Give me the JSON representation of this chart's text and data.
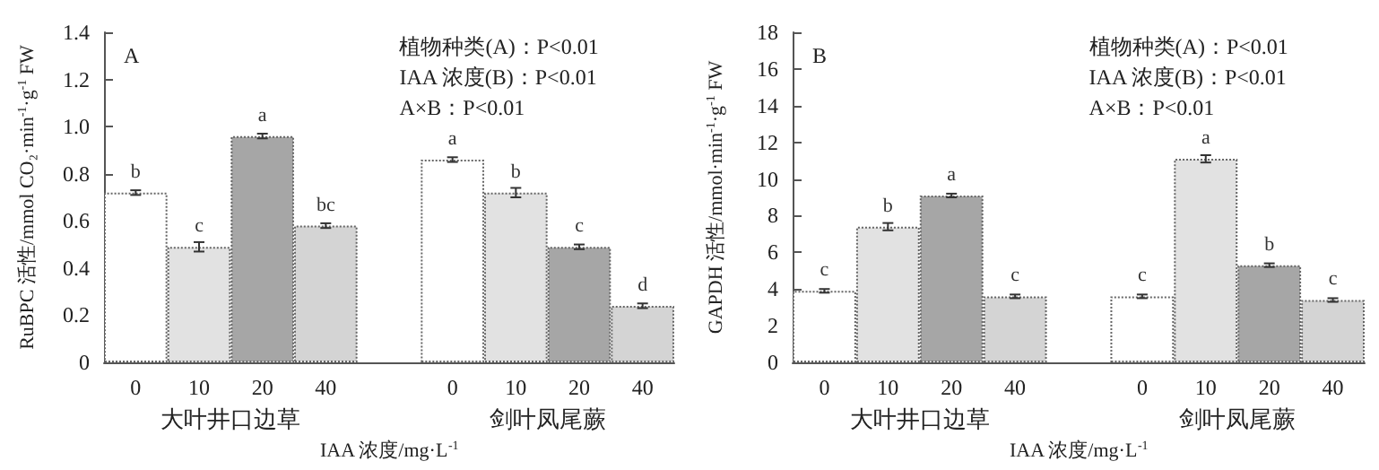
{
  "chart_data": [
    {
      "type": "bar",
      "title": "A",
      "ylabel": "RuBPC 活性/mmol CO₂·min$^{-1}$·g$^{-1}$ FW",
      "xlabel": "IAA 浓度/mg·L$^{-1}$",
      "annotations": [
        "植物种类(A)：P<0.01",
        "IAA 浓度(B)：P<0.01",
        "A×B：P<0.01",
        "大叶井口边草",
        "剑叶凤尾蕨"
      ],
      "categories": [
        "0",
        "10",
        "20",
        "40",
        null,
        "0",
        "10",
        "20",
        "40"
      ],
      "values": [
        0.72,
        0.49,
        0.96,
        0.58,
        null,
        0.86,
        0.72,
        0.49,
        0.24
      ],
      "errors": [
        0.01,
        0.02,
        0.01,
        0.01,
        null,
        0.01,
        0.02,
        0.01,
        0.01
      ],
      "colors": [
        "#ffffff",
        "#e2e2e2",
        "#a6a6a6",
        "#d4d4d4",
        "#ffffff",
        "#ffffff",
        "#e2e2e2",
        "#a6a6a6",
        "#d4d4d4"
      ],
      "value_labels": [
        "b",
        "c",
        "a",
        "bc",
        null,
        "a",
        "b",
        "c",
        "d"
      ],
      "ylim": [
        0,
        1.4
      ],
      "yticks": [
        0,
        0.2,
        0.4,
        0.6,
        0.8,
        {
          "value": 1,
          "label": "1.0"
        },
        1.2,
        1.4
      ],
      "grid": false
    },
    {
      "type": "bar",
      "title": "B",
      "ylabel": "GAPDH 活性/mmol·min$^{-1}$·g$^{-1}$ FW",
      "xlabel": "IAA 浓度/mg·L$^{-1}$",
      "annotations": [
        "植物种类(A)：P<0.01",
        "IAA 浓度(B)：P<0.01",
        "A×B：P<0.01",
        "大叶井口边草",
        "剑叶凤尾蕨"
      ],
      "categories": [
        "0",
        "10",
        "20",
        "40",
        null,
        "0",
        "10",
        "20",
        "40"
      ],
      "values": [
        3.9,
        7.4,
        9.1,
        3.6,
        null,
        3.6,
        11.1,
        5.3,
        3.4
      ],
      "errors": [
        0.1,
        0.2,
        0.1,
        0.1,
        null,
        0.1,
        0.2,
        0.1,
        0.1
      ],
      "colors": [
        "#ffffff",
        "#e2e2e2",
        "#a6a6a6",
        "#d4d4d4",
        "#ffffff",
        "#ffffff",
        "#e2e2e2",
        "#a6a6a6",
        "#d4d4d4"
      ],
      "value_labels": [
        "c",
        "b",
        "a",
        "c",
        null,
        "c",
        "a",
        "b",
        "c"
      ],
      "ylim": [
        0,
        18
      ],
      "yticks": [
        0,
        2,
        4,
        6,
        8,
        10,
        12,
        14,
        16,
        18
      ],
      "grid": false
    }
  ]
}
